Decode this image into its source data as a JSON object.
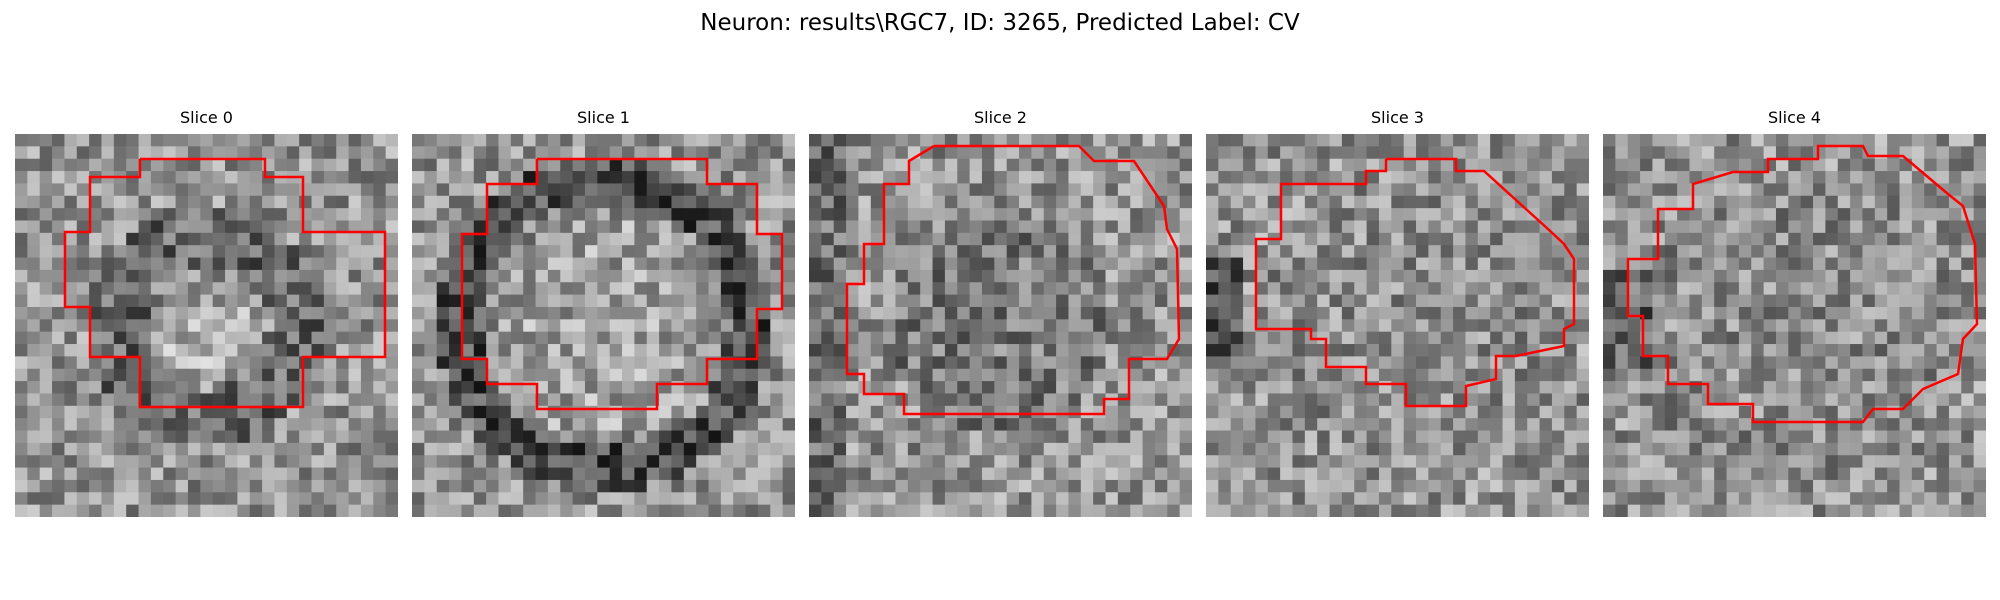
{
  "figure": {
    "title": "Neuron: results\\RGC7, ID: 3265, Predicted Label: CV",
    "contour_color": "#ff0000"
  },
  "slices": [
    {
      "title": "Slice 0"
    },
    {
      "title": "Slice 1"
    },
    {
      "title": "Slice 2"
    },
    {
      "title": "Slice 3"
    },
    {
      "title": "Slice 4"
    }
  ]
}
